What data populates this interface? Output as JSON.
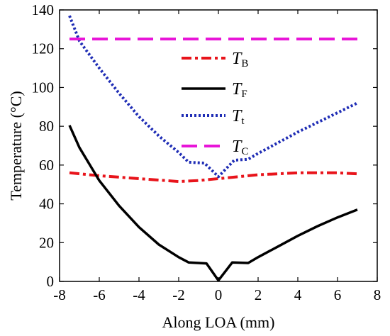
{
  "chart_data": {
    "type": "line",
    "xlabel": "Along LOA (mm)",
    "ylabel": "Temperature (°C)",
    "xlim": [
      -8,
      8
    ],
    "ylim": [
      0,
      140
    ],
    "xticks": [
      "-8",
      "-6",
      "-4",
      "-2",
      "0",
      "2",
      "4",
      "6",
      "8"
    ],
    "yticks": [
      "0",
      "20",
      "40",
      "60",
      "80",
      "100",
      "120",
      "140"
    ],
    "grid": false,
    "legend_position": "top-center",
    "series": [
      {
        "name": "T",
        "subscript": "B",
        "color": "#e8141b",
        "style": "dashdot",
        "x": [
          -7.5,
          -6,
          -4,
          -2,
          -1,
          0,
          1,
          2,
          3,
          4,
          5,
          6,
          7
        ],
        "y": [
          56,
          54.5,
          53,
          51.5,
          52,
          53,
          54,
          55,
          55.5,
          56,
          56,
          56,
          55.5
        ]
      },
      {
        "name": "T",
        "subscript": "F",
        "color": "#000000",
        "style": "solid",
        "x": [
          -7.5,
          -7,
          -6,
          -5,
          -4,
          -3,
          -2,
          -1.5,
          -0.6,
          0,
          0.7,
          1.5,
          2,
          3,
          4,
          5,
          6,
          7
        ],
        "y": [
          80.5,
          69,
          52,
          39,
          28,
          19,
          12.5,
          9.8,
          9.3,
          0.5,
          9.8,
          9.5,
          12.5,
          18,
          23.5,
          28.5,
          33,
          37
        ]
      },
      {
        "name": "T",
        "subscript": "t",
        "color": "#1f2db5",
        "style": "dotted",
        "x": [
          -7.5,
          -7,
          -6,
          -5,
          -4,
          -3,
          -2,
          -1.5,
          -0.7,
          0,
          0.8,
          1.5,
          2,
          3,
          4,
          5,
          6,
          7
        ],
        "y": [
          137,
          124,
          110,
          97,
          85,
          75,
          66.5,
          61.5,
          61,
          54,
          62.5,
          63,
          66,
          71.5,
          77,
          82,
          87,
          92
        ]
      },
      {
        "name": "T",
        "subscript": "C",
        "color": "#e815d8",
        "style": "dashed",
        "x": [
          -7.5,
          7
        ],
        "y": [
          125,
          125
        ]
      }
    ]
  }
}
